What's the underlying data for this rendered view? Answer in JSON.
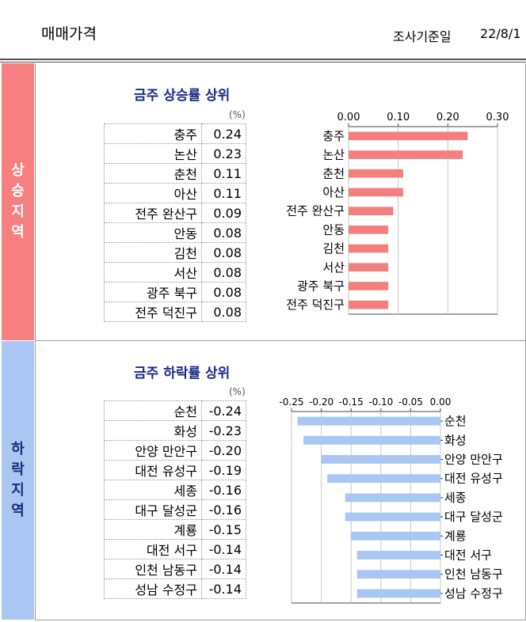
{
  "header": {
    "title": "매매가격",
    "date_label": "조사기준일",
    "date": "22/8/1"
  },
  "rise": {
    "side_label": [
      "상",
      "승",
      "지",
      "역"
    ],
    "title": "금주 상승률 상위",
    "unit": "(%)",
    "rows": [
      {
        "region": "충주",
        "value": "0.24"
      },
      {
        "region": "논산",
        "value": "0.23"
      },
      {
        "region": "춘천",
        "value": "0.11"
      },
      {
        "region": "아산",
        "value": "0.11"
      },
      {
        "region": "전주 완산구",
        "value": "0.09"
      },
      {
        "region": "안동",
        "value": "0.08"
      },
      {
        "region": "김천",
        "value": "0.08"
      },
      {
        "region": "서산",
        "value": "0.08"
      },
      {
        "region": "광주 북구",
        "value": "0.08"
      },
      {
        "region": "전주 덕진구",
        "value": "0.08"
      }
    ]
  },
  "fall": {
    "side_label": [
      "하",
      "락",
      "지",
      "역"
    ],
    "title": "금주 하락률 상위",
    "unit": "(%)",
    "rows": [
      {
        "region": "순천",
        "value": "-0.24"
      },
      {
        "region": "화성",
        "value": "-0.23"
      },
      {
        "region": "안양 만안구",
        "value": "-0.20"
      },
      {
        "region": "대전 유성구",
        "value": "-0.19"
      },
      {
        "region": "세종",
        "value": "-0.16"
      },
      {
        "region": "대구 달성군",
        "value": "-0.16"
      },
      {
        "region": "계룡",
        "value": "-0.15"
      },
      {
        "region": "대전 서구",
        "value": "-0.14"
      },
      {
        "region": "인천 남동구",
        "value": "-0.14"
      },
      {
        "region": "성남 수정구",
        "value": "-0.14"
      }
    ]
  },
  "chart_data": [
    {
      "type": "bar",
      "orientation": "horizontal",
      "categories": [
        "충주",
        "논산",
        "춘천",
        "아산",
        "전주 완산구",
        "안동",
        "김천",
        "서산",
        "광주 북구",
        "전주 덕진구"
      ],
      "values": [
        0.24,
        0.23,
        0.11,
        0.11,
        0.09,
        0.08,
        0.08,
        0.08,
        0.08,
        0.08
      ],
      "xlim": [
        0,
        0.3
      ],
      "ticks": [
        "0.00",
        "0.10",
        "0.20",
        "0.30"
      ],
      "tick_values": [
        0,
        0.1,
        0.2,
        0.3
      ],
      "axis_position": "top",
      "grid": true,
      "color": "#f47f7f"
    },
    {
      "type": "bar",
      "orientation": "horizontal",
      "categories": [
        "순천",
        "화성",
        "안양 만안구",
        "대전 유성구",
        "세종",
        "대구 달성군",
        "계룡",
        "대전 서구",
        "인천 남동구",
        "성남 수정구"
      ],
      "values": [
        -0.24,
        -0.23,
        -0.2,
        -0.19,
        -0.16,
        -0.16,
        -0.15,
        -0.14,
        -0.14,
        -0.14
      ],
      "xlim": [
        -0.25,
        0
      ],
      "ticks": [
        "-0.25",
        "-0.20",
        "-0.15",
        "-0.10",
        "-0.05",
        "0.00"
      ],
      "tick_values": [
        -0.25,
        -0.2,
        -0.15,
        -0.1,
        -0.05,
        0
      ],
      "axis_position": "top",
      "grid": true,
      "color": "#a9c7f2"
    }
  ]
}
